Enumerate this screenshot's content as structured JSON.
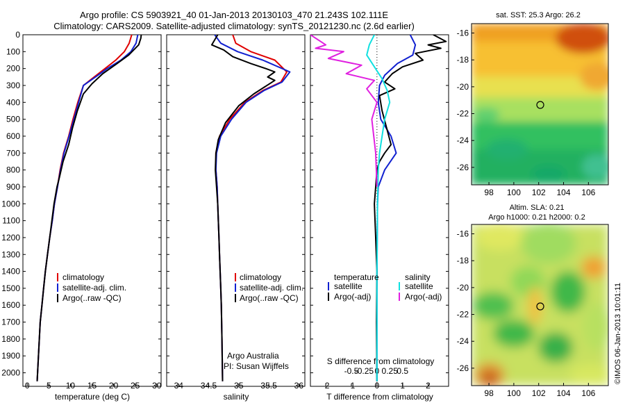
{
  "header": {
    "title_line1": "Argo profile: CS 5903921_40 01-Jan-2013 20130103_470 21.243S 102.111E",
    "title_line2": "Climatology: CARS2009. Satellite-adjusted climatology: synTS_20121230.nc (2.6d earlier)"
  },
  "colors": {
    "climatology": "#e00000",
    "satellite": "#1020d0",
    "argo": "#000000",
    "salinity_satellite": "#10e0e0",
    "salinity_argo": "#e020e0"
  },
  "chart_data": [
    {
      "type": "line",
      "id": "temperature",
      "xlabel": "temperature (deg C)",
      "ylabel": "",
      "xlim": [
        -1,
        31
      ],
      "ylim": [
        2080,
        0
      ],
      "xticks": [
        "0",
        "5",
        "10",
        "15",
        "20",
        "25",
        "30"
      ],
      "yticks": [
        "0",
        "100",
        "200",
        "300",
        "400",
        "500",
        "600",
        "700",
        "800",
        "900",
        "1000",
        "1100",
        "1200",
        "1300",
        "1400",
        "1500",
        "1600",
        "1700",
        "1800",
        "1900",
        "2000"
      ],
      "legend": [
        "climatology",
        "satellite-adj. clim.",
        "Argo(..raw -QC)"
      ],
      "series": [
        {
          "name": "climatology",
          "color": "#e00000",
          "x": [
            24.2,
            23.6,
            22.5,
            20.5,
            18.0,
            15.5,
            13.0,
            11.7,
            10.6,
            9.6,
            8.4,
            7.6,
            7.0,
            6.3,
            5.8,
            5.2,
            4.7,
            4.2,
            3.8,
            3.4,
            3.0,
            2.7,
            2.3
          ],
          "y": [
            0,
            50,
            100,
            150,
            200,
            250,
            300,
            400,
            500,
            600,
            700,
            800,
            900,
            1000,
            1100,
            1200,
            1300,
            1400,
            1500,
            1600,
            1700,
            1850,
            2050
          ]
        },
        {
          "name": "satellite-adj. clim.",
          "color": "#1020d0",
          "x": [
            25.6,
            25.2,
            24.0,
            21.7,
            18.5,
            15.8,
            13.0,
            11.9,
            10.8,
            9.7,
            8.5,
            7.7,
            7.0,
            6.3,
            5.8,
            5.2,
            4.7,
            4.2,
            3.8,
            3.4,
            3.0,
            2.7,
            2.3
          ],
          "y": [
            0,
            50,
            100,
            150,
            200,
            250,
            300,
            400,
            500,
            600,
            700,
            800,
            900,
            1000,
            1100,
            1200,
            1300,
            1400,
            1500,
            1600,
            1700,
            1850,
            2050
          ]
        },
        {
          "name": "Argo(..raw -QC)",
          "color": "#000000",
          "x": [
            26.4,
            26.3,
            25.8,
            23.5,
            20.8,
            17.5,
            15.0,
            13.0,
            11.6,
            10.5,
            9.6,
            8.3,
            7.4,
            6.9,
            6.2,
            5.7,
            5.2,
            4.7,
            4.2,
            3.8,
            3.4,
            3.0,
            2.7,
            2.3
          ],
          "y": [
            0,
            20,
            60,
            120,
            170,
            230,
            290,
            350,
            450,
            550,
            650,
            750,
            850,
            900,
            1000,
            1100,
            1200,
            1300,
            1400,
            1500,
            1600,
            1700,
            1850,
            2050
          ]
        }
      ]
    },
    {
      "type": "line",
      "id": "salinity",
      "xlabel": "salinity",
      "ylabel": "",
      "xlim": [
        33.8,
        36.1
      ],
      "ylim": [
        2080,
        0
      ],
      "xticks": [
        "34",
        "34.5",
        "35",
        "35.5",
        "36"
      ],
      "legend": [
        "climatology",
        "satellite-adj. clim.",
        "Argo(..raw -QC)"
      ],
      "annotation_line1": "Argo Australia",
      "annotation_line2": "PI: Susan Wijffels",
      "series": [
        {
          "name": "climatology",
          "color": "#e00000",
          "x": [
            34.9,
            34.95,
            35.2,
            35.6,
            35.8,
            35.7,
            35.4,
            35.1,
            34.85,
            34.68,
            34.62,
            34.62,
            34.64,
            34.65,
            34.66,
            34.67,
            34.68,
            34.69,
            34.7,
            34.71,
            34.72,
            34.73
          ],
          "y": [
            0,
            50,
            100,
            150,
            220,
            280,
            330,
            400,
            500,
            600,
            700,
            800,
            900,
            1000,
            1100,
            1200,
            1300,
            1400,
            1500,
            1600,
            1800,
            2050
          ]
        },
        {
          "name": "satellite-adj. clim.",
          "color": "#1020d0",
          "x": [
            34.6,
            34.7,
            34.98,
            35.4,
            35.85,
            35.72,
            35.42,
            35.12,
            34.88,
            34.7,
            34.63,
            34.62,
            34.64,
            34.65,
            34.66,
            34.67,
            34.68,
            34.69,
            34.7,
            34.71,
            34.72,
            34.73
          ],
          "y": [
            0,
            50,
            100,
            150,
            220,
            280,
            330,
            400,
            500,
            600,
            700,
            800,
            900,
            1000,
            1100,
            1200,
            1300,
            1400,
            1500,
            1600,
            1800,
            2050
          ]
        },
        {
          "name": "Argo(..raw -QC)",
          "color": "#000000",
          "x": [
            34.65,
            34.55,
            34.75,
            34.9,
            35.2,
            35.45,
            35.6,
            35.48,
            35.6,
            35.25,
            35.0,
            34.78,
            34.66,
            34.62,
            34.61,
            34.63,
            34.65,
            34.66,
            34.67,
            34.68,
            34.69,
            34.7,
            34.71,
            34.72,
            34.73
          ],
          "y": [
            0,
            60,
            90,
            130,
            170,
            200,
            220,
            250,
            270,
            350,
            420,
            520,
            620,
            700,
            800,
            900,
            1000,
            1100,
            1200,
            1300,
            1400,
            1500,
            1600,
            1800,
            2050
          ]
        }
      ]
    },
    {
      "type": "line",
      "id": "difference",
      "xlabel": "T difference from climatology",
      "xlabel_top": "S difference from climatology",
      "xlim": [
        -2.6,
        2.8
      ],
      "ylim": [
        2080,
        0
      ],
      "xticks": [
        "-2",
        "-1",
        "0",
        "1",
        "2"
      ],
      "xticks_s": [
        "-0.5",
        "-0.25",
        "0",
        "0.25",
        "0.5"
      ],
      "legend_title_t": "temperature",
      "legend_title_s": "salinity",
      "legend": [
        "satellite",
        "Argo(-adj)",
        "satellite",
        "Argo(-adj)"
      ],
      "series": [
        {
          "name": "satellite",
          "quantity": "temperature",
          "color": "#1020d0",
          "x": [
            1.3,
            1.5,
            1.4,
            0.8,
            0.3,
            0.1,
            0.05,
            0.15,
            0.55,
            0.75,
            0.3,
            0.05,
            0.02,
            0.01,
            0.0,
            0.0
          ],
          "y": [
            0,
            60,
            120,
            170,
            240,
            300,
            400,
            500,
            600,
            700,
            800,
            900,
            1000,
            1200,
            1500,
            2050
          ]
        },
        {
          "name": "Argo(-adj)",
          "quantity": "temperature",
          "color": "#000000",
          "x": [
            2.2,
            2.7,
            2.0,
            2.5,
            1.5,
            1.8,
            1.0,
            0.6,
            0.3,
            0.7,
            0.1,
            0.2,
            0.55,
            0.3,
            0.1,
            0.0,
            -0.05,
            -0.1,
            -0.05,
            0.0,
            -0.02,
            0.0
          ],
          "y": [
            0,
            40,
            60,
            80,
            110,
            150,
            190,
            230,
            280,
            320,
            360,
            450,
            650,
            700,
            750,
            800,
            900,
            1000,
            1200,
            1400,
            1700,
            2050
          ]
        },
        {
          "name": "satellite",
          "quantity": "salinity",
          "color": "#10e0e0",
          "x": [
            -0.1,
            -0.3,
            -0.4,
            -0.1,
            0.2,
            0.4,
            0.5,
            0.3,
            0.2,
            0.1,
            0.05,
            0.02,
            0.0,
            0.0
          ],
          "y": [
            0,
            60,
            120,
            190,
            260,
            330,
            400,
            500,
            600,
            700,
            800,
            1000,
            1400,
            2050
          ]
        },
        {
          "name": "Argo(-adj)",
          "quantity": "salinity",
          "color": "#e020e0",
          "x": [
            -2.6,
            -2.0,
            -2.4,
            -1.3,
            -1.9,
            -0.6,
            -1.2,
            -0.1,
            -0.4,
            0.0,
            -0.2,
            -0.05,
            0.0
          ],
          "y": [
            0,
            60,
            80,
            100,
            140,
            180,
            230,
            270,
            320,
            400,
            500,
            700,
            900
          ]
        }
      ]
    }
  ],
  "maps": [
    {
      "id": "sst",
      "title": "sat. SST: 25.3  Argo: 26.2",
      "xticks": [
        "98",
        "100",
        "102",
        "104",
        "106"
      ],
      "yticks": [
        "-16",
        "-18",
        "-20",
        "-22",
        "-24",
        "-26"
      ]
    },
    {
      "id": "sla",
      "title_line1": "Altim. SLA: 0.21",
      "title_line2": "Argo h1000: 0.21  h2000: 0.2",
      "xticks": [
        "98",
        "100",
        "102",
        "104",
        "106"
      ],
      "yticks": [
        "-16",
        "-18",
        "-20",
        "-22",
        "-24",
        "-26"
      ]
    }
  ],
  "footer": {
    "stamp": "©IMOS 06-Jan-2013 10:01:11"
  }
}
